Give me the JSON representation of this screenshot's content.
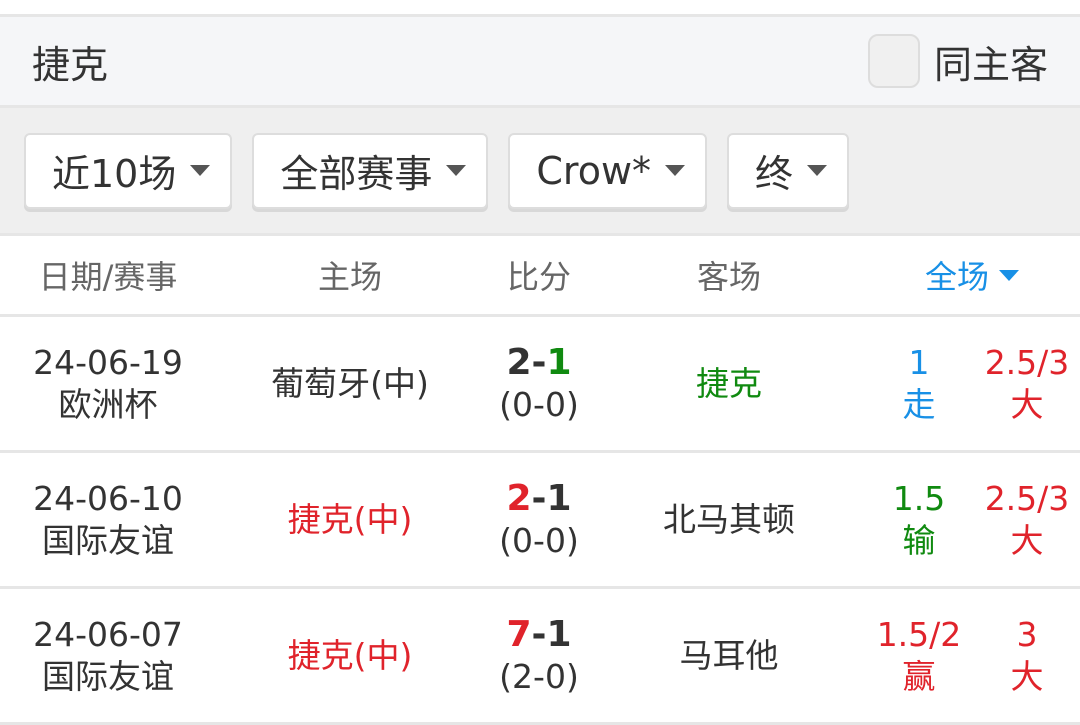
{
  "team": "捷克",
  "same_home_away": {
    "label": "同主客",
    "checked": false
  },
  "filters": [
    "近10场",
    "全部赛事",
    "Crow*",
    "终"
  ],
  "columns": {
    "date": "日期/赛事",
    "home": "主场",
    "score": "比分",
    "away": "客场",
    "full": "全场"
  },
  "rows": [
    {
      "date": "24-06-19",
      "comp": "欧洲杯",
      "home": "葡萄牙(中)",
      "home_color": "dark",
      "s1": "2",
      "s1c": "dark",
      "s2": "1",
      "s2c": "green",
      "half": "(0-0)",
      "away": "捷克",
      "away_color": "green",
      "hcp": "1",
      "hcp_res": "走",
      "hcp_color": "blue",
      "ou": "2.5/3",
      "ou_res": "大",
      "ou_color": "red"
    },
    {
      "date": "24-06-10",
      "comp": "国际友谊",
      "home": "捷克(中)",
      "home_color": "red",
      "s1": "2",
      "s1c": "red",
      "s2": "1",
      "s2c": "dark",
      "half": "(0-0)",
      "away": "北马其顿",
      "away_color": "dark",
      "hcp": "1.5",
      "hcp_res": "输",
      "hcp_color": "green",
      "ou": "2.5/3",
      "ou_res": "大",
      "ou_color": "red"
    },
    {
      "date": "24-06-07",
      "comp": "国际友谊",
      "home": "捷克(中)",
      "home_color": "red",
      "s1": "7",
      "s1c": "red",
      "s2": "1",
      "s2c": "dark",
      "half": "(2-0)",
      "away": "马耳他",
      "away_color": "dark",
      "hcp": "1.5/2",
      "hcp_res": "赢",
      "hcp_color": "red",
      "ou": "3",
      "ou_res": "大",
      "ou_color": "red"
    }
  ]
}
